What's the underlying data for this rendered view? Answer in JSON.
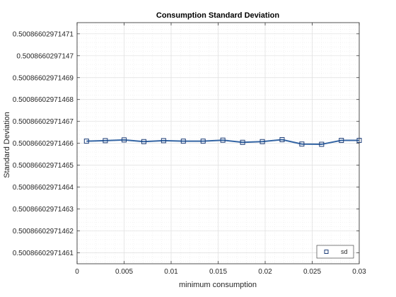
{
  "chart_data": {
    "type": "line",
    "title": "Consumption Standard Deviation",
    "xlabel": "minimum consumption",
    "ylabel": "Standard Deviation",
    "xlim": [
      0,
      0.03
    ],
    "ylim": [
      0.500866029714605,
      0.500866029714715
    ],
    "x_ticks": [
      0,
      0.005,
      0.01,
      0.015,
      0.02,
      0.025,
      0.03
    ],
    "x_tick_labels": [
      "0",
      "0.005",
      "0.01",
      "0.015",
      "0.02",
      "0.025",
      "0.03"
    ],
    "y_ticks": [
      0.50086602971461,
      0.50086602971462,
      0.50086602971463,
      0.50086602971464,
      0.50086602971465,
      0.50086602971466,
      0.50086602971467,
      0.50086602971468,
      0.50086602971469,
      0.5008660297147,
      0.50086602971471
    ],
    "y_tick_labels": [
      "0.50086602971461",
      "0.50086602971462",
      "0.50086602971463",
      "0.50086602971464",
      "0.50086602971465",
      "0.50086602971466",
      "0.50086602971467",
      "0.50086602971468",
      "0.50086602971469",
      "0.5008660297147",
      "0.50086602971471"
    ],
    "grid": true,
    "minor_grid": true,
    "legend": {
      "entries": [
        "sd"
      ],
      "location": "bottom-right"
    },
    "series": [
      {
        "name": "sd",
        "color": "#3465a4",
        "marker": "square",
        "x": [
          0.001,
          0.003,
          0.005,
          0.0071,
          0.0092,
          0.0113,
          0.0134,
          0.0155,
          0.0176,
          0.0197,
          0.0218,
          0.0239,
          0.026,
          0.0281,
          0.03
        ],
        "y": [
          0.500866029714661,
          0.5008660297146612,
          0.5008660297146615,
          0.5008660297146608,
          0.5008660297146612,
          0.500866029714661,
          0.500866029714661,
          0.5008660297146614,
          0.5008660297146604,
          0.5008660297146608,
          0.5008660297146617,
          0.5008660297146597,
          0.5008660297146595,
          0.5008660297146613,
          0.5008660297146613
        ]
      }
    ]
  }
}
